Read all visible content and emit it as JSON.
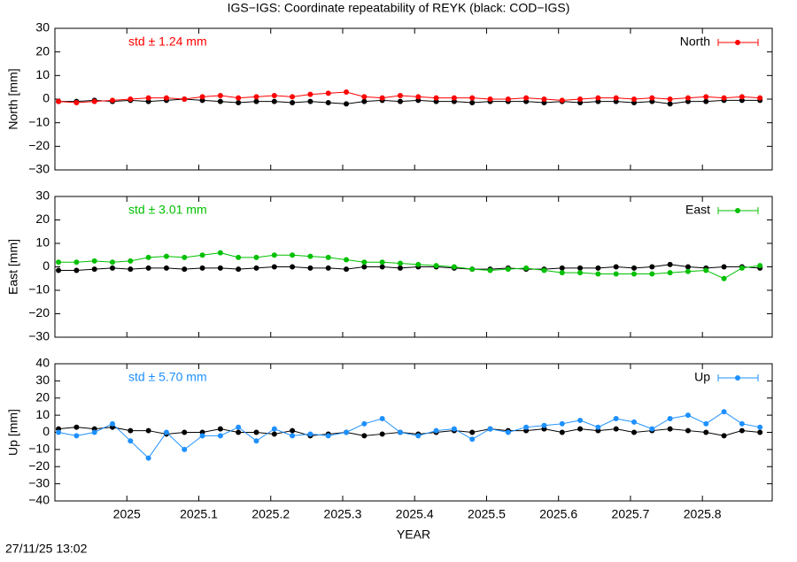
{
  "title": "IGS−IGS: Coordinate repeatability of REYK (black: COD−IGS)",
  "timestamp": "27/11/25 13:02",
  "chart_data": [
    {
      "type": "line",
      "ylabel": "North [mm]",
      "annotation": "std ± 1.24 mm",
      "xlim": [
        2024.9,
        2025.897
      ],
      "ylim": [
        -30,
        30
      ],
      "yticks": [
        {
          "value": -30,
          "label": "−30"
        },
        {
          "value": -20,
          "label": "−20"
        },
        {
          "value": -10,
          "label": "−10"
        },
        0,
        10,
        20,
        30
      ],
      "x": [
        2024.905,
        2024.93,
        2024.955,
        2024.98,
        2025.005,
        2025.03,
        2025.055,
        2025.08,
        2025.105,
        2025.13,
        2025.155,
        2025.18,
        2025.205,
        2025.23,
        2025.255,
        2025.28,
        2025.305,
        2025.33,
        2025.355,
        2025.38,
        2025.405,
        2025.43,
        2025.455,
        2025.48,
        2025.505,
        2025.53,
        2025.555,
        2025.58,
        2025.605,
        2025.63,
        2025.655,
        2025.68,
        2025.705,
        2025.73,
        2025.755,
        2025.78,
        2025.805,
        2025.83,
        2025.855,
        2025.88
      ],
      "series": [
        {
          "color": "#000000",
          "values": [
            -1,
            -1,
            -0.5,
            -1,
            -0.5,
            -1,
            -0.5,
            0,
            -0.5,
            -1,
            -1.5,
            -1,
            -1,
            -1.5,
            -1,
            -1.5,
            -2,
            -1,
            -0.5,
            -1,
            -0.5,
            -1,
            -1,
            -1.5,
            -1,
            -1,
            -1,
            -1.5,
            -1,
            -1.5,
            -1,
            -1,
            -1.5,
            -1,
            -2,
            -1,
            -1,
            -0.5,
            -0.5,
            -0.5
          ]
        },
        {
          "name": "North",
          "color": "#ff0000",
          "values": [
            -1,
            -1.5,
            -1,
            -0.5,
            0,
            0.5,
            0.5,
            0,
            1,
            1.5,
            0.5,
            1,
            1.5,
            1,
            2,
            2.5,
            3,
            1,
            0.5,
            1.5,
            1,
            0.5,
            0.5,
            0.5,
            0,
            0,
            0.5,
            0,
            -0.5,
            0,
            0.5,
            0.5,
            0,
            0.5,
            0,
            0.5,
            1,
            0.5,
            1,
            0.5
          ]
        }
      ]
    },
    {
      "type": "line",
      "ylabel": "East [mm]",
      "annotation": "std ± 3.01 mm",
      "xlim": [
        2024.9,
        2025.897
      ],
      "ylim": [
        -30,
        30
      ],
      "yticks": [
        {
          "value": -30,
          "label": "−30"
        },
        {
          "value": -20,
          "label": "−20"
        },
        {
          "value": -10,
          "label": "−10"
        },
        0,
        10,
        20,
        30
      ],
      "x": [
        2024.905,
        2024.93,
        2024.955,
        2024.98,
        2025.005,
        2025.03,
        2025.055,
        2025.08,
        2025.105,
        2025.13,
        2025.155,
        2025.18,
        2025.205,
        2025.23,
        2025.255,
        2025.28,
        2025.305,
        2025.33,
        2025.355,
        2025.38,
        2025.405,
        2025.43,
        2025.455,
        2025.48,
        2025.505,
        2025.53,
        2025.555,
        2025.58,
        2025.605,
        2025.63,
        2025.655,
        2025.68,
        2025.705,
        2025.73,
        2025.755,
        2025.78,
        2025.805,
        2025.83,
        2025.855,
        2025.88
      ],
      "series": [
        {
          "color": "#000000",
          "values": [
            -1.5,
            -1.5,
            -1,
            -0.5,
            -1,
            -0.5,
            -0.5,
            -1,
            -0.5,
            -0.5,
            -1,
            -0.5,
            0,
            0,
            -0.5,
            -0.5,
            -1,
            0,
            0,
            -0.5,
            0,
            0,
            -0.5,
            -1,
            -1,
            -0.5,
            -1,
            -1,
            -0.5,
            -0.5,
            -0.5,
            0,
            -0.5,
            0,
            1,
            0,
            -0.5,
            0,
            0,
            -0.5
          ]
        },
        {
          "name": "East",
          "color": "#00c000",
          "values": [
            2,
            2,
            2.5,
            2,
            2.5,
            4,
            4.5,
            4,
            5,
            6,
            4,
            4,
            5,
            5,
            4.5,
            4,
            3,
            2,
            2,
            1.5,
            1,
            0.5,
            0,
            -1,
            -1.5,
            -1,
            -0.5,
            -1.5,
            -2.5,
            -2.5,
            -3,
            -3,
            -3,
            -3,
            -2.5,
            -2,
            -1.5,
            -5,
            -0.5,
            0.5
          ]
        }
      ]
    },
    {
      "type": "line",
      "ylabel": "Up [mm]",
      "annotation": "std ± 5.70 mm",
      "xlabel": "YEAR",
      "xlim": [
        2024.9,
        2025.897
      ],
      "ylim": [
        -40,
        40
      ],
      "yticks": [
        {
          "value": -40,
          "label": "−40"
        },
        {
          "value": -30,
          "label": "−30"
        },
        {
          "value": -20,
          "label": "−20"
        },
        {
          "value": -10,
          "label": "−10"
        },
        0,
        10,
        20,
        30,
        40
      ],
      "xticks": [
        2025,
        2025.1,
        2025.2,
        2025.3,
        2025.4,
        2025.5,
        2025.6,
        2025.7,
        2025.8
      ],
      "x": [
        2024.905,
        2024.93,
        2024.955,
        2024.98,
        2025.005,
        2025.03,
        2025.055,
        2025.08,
        2025.105,
        2025.13,
        2025.155,
        2025.18,
        2025.205,
        2025.23,
        2025.255,
        2025.28,
        2025.305,
        2025.33,
        2025.355,
        2025.38,
        2025.405,
        2025.43,
        2025.455,
        2025.48,
        2025.505,
        2025.53,
        2025.555,
        2025.58,
        2025.605,
        2025.63,
        2025.655,
        2025.68,
        2025.705,
        2025.73,
        2025.755,
        2025.78,
        2025.805,
        2025.83,
        2025.855,
        2025.88
      ],
      "series": [
        {
          "color": "#000000",
          "values": [
            2,
            3,
            2,
            3,
            1,
            1,
            -1,
            0,
            0,
            2,
            0,
            0,
            -1,
            1,
            -2,
            -1,
            0,
            -2,
            -1,
            0,
            -1,
            0,
            1,
            0,
            2,
            1,
            1,
            2,
            0,
            2,
            1,
            2,
            0,
            1,
            2,
            1,
            0,
            -2,
            1,
            0
          ]
        },
        {
          "name": "Up",
          "color": "#1e90ff",
          "values": [
            0,
            -2,
            0,
            5,
            -5,
            -15,
            0,
            -10,
            -2,
            -2,
            3,
            -5,
            2,
            -2,
            -1,
            -2,
            0,
            5,
            8,
            0,
            -2,
            1,
            2,
            -4,
            2,
            0,
            3,
            4,
            5,
            7,
            3,
            8,
            6,
            2,
            8,
            10,
            5,
            12,
            5,
            3
          ]
        }
      ]
    }
  ]
}
